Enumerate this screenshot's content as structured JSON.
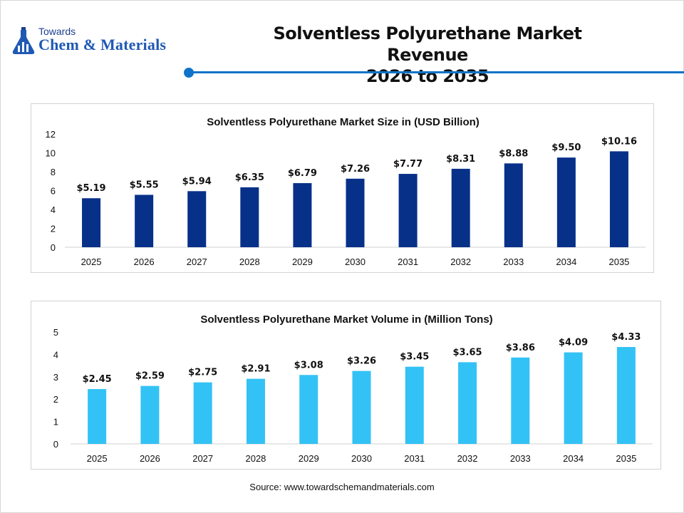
{
  "logo": {
    "top_text": "Towards",
    "brand_text": "Chem & Materials",
    "icon": "flask-chart-icon"
  },
  "header": {
    "title_line1": "Solventless Polyurethane Market Revenue",
    "title_line2": "2026 to 2035"
  },
  "colors": {
    "accent": "#0f74c9",
    "bar_dark": "#073089",
    "bar_light": "#33c2f5"
  },
  "chart_data": [
    {
      "type": "bar",
      "title": "Solventless Polyurethane Market Size in (USD Billion)",
      "categories": [
        "2025",
        "2026",
        "2027",
        "2028",
        "2029",
        "2030",
        "2031",
        "2032",
        "2033",
        "2034",
        "2035"
      ],
      "values": [
        5.19,
        5.55,
        5.94,
        6.35,
        6.79,
        7.26,
        7.77,
        8.31,
        8.88,
        9.5,
        10.16
      ],
      "data_labels": [
        "$5.19",
        "$5.55",
        "$5.94",
        "$6.35",
        "$6.79",
        "$7.26",
        "$7.77",
        "$8.31",
        "$8.88",
        "$9.50",
        "$10.16"
      ],
      "yticks": [
        "0",
        "2",
        "4",
        "6",
        "8",
        "10",
        "12"
      ],
      "ylim": [
        0,
        12
      ],
      "color": "#073089",
      "grid": false,
      "xlabel": "",
      "ylabel": ""
    },
    {
      "type": "bar",
      "title": "Solventless Polyurethane Market Volume in (Million Tons)",
      "categories": [
        "2025",
        "2026",
        "2027",
        "2028",
        "2029",
        "2030",
        "2031",
        "2032",
        "2033",
        "2034",
        "2035"
      ],
      "values": [
        2.45,
        2.59,
        2.75,
        2.91,
        3.08,
        3.26,
        3.45,
        3.65,
        3.86,
        4.09,
        4.33
      ],
      "data_labels": [
        "$2.45",
        "$2.59",
        "$2.75",
        "$2.91",
        "$3.08",
        "$3.26",
        "$3.45",
        "$3.65",
        "$3.86",
        "$4.09",
        "$4.33"
      ],
      "yticks": [
        "0",
        "1",
        "2",
        "3",
        "4",
        "5"
      ],
      "ylim": [
        0,
        5
      ],
      "color": "#33c2f5",
      "grid": false,
      "xlabel": "",
      "ylabel": ""
    }
  ],
  "footer": {
    "source": "Source: www.towardschemandmaterials.com"
  }
}
